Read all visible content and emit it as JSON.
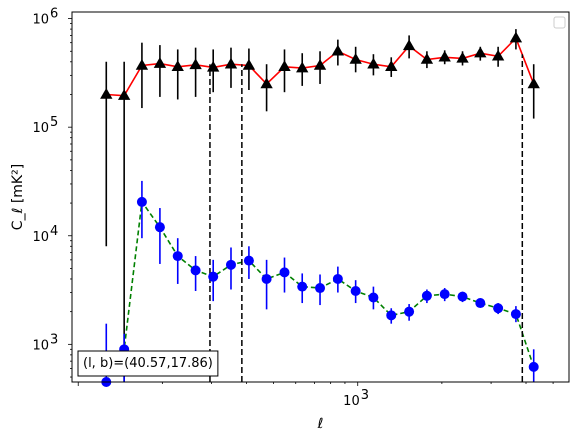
{
  "chart_data": {
    "type": "scatter",
    "xlabel": "ℓ",
    "ylabel": "C_ℓ  [mK²]",
    "xscale": "log",
    "yscale": "log",
    "xlim": [
      95,
      5700
    ],
    "ylim": [
      450,
      1150000
    ],
    "x_ticks": [
      {
        "value": 1000,
        "label": "10",
        "exp": "3"
      }
    ],
    "y_ticks": [
      {
        "value": 1000,
        "label": "10",
        "exp": "3"
      },
      {
        "value": 10000,
        "label": "10",
        "exp": "4"
      },
      {
        "value": 100000,
        "label": "10",
        "exp": "5"
      },
      {
        "value": 1000000,
        "label": "10",
        "exp": "6"
      }
    ],
    "grid": false,
    "legend": {
      "placement": "top-right",
      "entries": []
    },
    "annotation": "(l, b)=(40.57,17.86)",
    "vlines": [
      {
        "x": 296,
        "ymax": 380000
      },
      {
        "x": 385,
        "ymax": 380000
      },
      {
        "x": 3880,
        "ymax": 470000
      }
    ],
    "series": [
      {
        "color": "#ff0000",
        "marker_color": "#000000",
        "line_style": "solid",
        "marker": "triangle",
        "err_color": "#000000",
        "points": [
          {
            "x": 126,
            "y": 200000,
            "lo": 8000,
            "hi": 400000
          },
          {
            "x": 146,
            "y": 195000,
            "lo": 450,
            "hi": 400000
          },
          {
            "x": 169,
            "y": 370000,
            "lo": 150000,
            "hi": 600000
          },
          {
            "x": 196,
            "y": 385000,
            "lo": 190000,
            "hi": 570000
          },
          {
            "x": 227,
            "y": 360000,
            "lo": 180000,
            "hi": 520000
          },
          {
            "x": 263,
            "y": 375000,
            "lo": 190000,
            "hi": 540000
          },
          {
            "x": 304,
            "y": 355000,
            "lo": 210000,
            "hi": 520000
          },
          {
            "x": 352,
            "y": 380000,
            "lo": 230000,
            "hi": 540000
          },
          {
            "x": 408,
            "y": 370000,
            "lo": 220000,
            "hi": 530000
          },
          {
            "x": 472,
            "y": 250000,
            "lo": 140000,
            "hi": 380000
          },
          {
            "x": 547,
            "y": 360000,
            "lo": 210000,
            "hi": 520000
          },
          {
            "x": 633,
            "y": 350000,
            "lo": 240000,
            "hi": 480000
          },
          {
            "x": 733,
            "y": 370000,
            "lo": 250000,
            "hi": 500000
          },
          {
            "x": 849,
            "y": 500000,
            "lo": 370000,
            "hi": 640000
          },
          {
            "x": 983,
            "y": 420000,
            "lo": 320000,
            "hi": 550000
          },
          {
            "x": 1138,
            "y": 380000,
            "lo": 300000,
            "hi": 470000
          },
          {
            "x": 1318,
            "y": 360000,
            "lo": 290000,
            "hi": 440000
          },
          {
            "x": 1527,
            "y": 560000,
            "lo": 430000,
            "hi": 700000
          },
          {
            "x": 1768,
            "y": 420000,
            "lo": 350000,
            "hi": 500000
          },
          {
            "x": 2047,
            "y": 440000,
            "lo": 380000,
            "hi": 510000
          },
          {
            "x": 2371,
            "y": 430000,
            "lo": 370000,
            "hi": 500000
          },
          {
            "x": 2745,
            "y": 480000,
            "lo": 410000,
            "hi": 550000
          },
          {
            "x": 3179,
            "y": 450000,
            "lo": 360000,
            "hi": 550000
          },
          {
            "x": 3681,
            "y": 660000,
            "lo": 520000,
            "hi": 800000
          },
          {
            "x": 4262,
            "y": 250000,
            "lo": 120000,
            "hi": 380000
          }
        ]
      },
      {
        "color": "#008000",
        "marker_color": "#0000ff",
        "line_style": "dashed",
        "marker": "circle",
        "err_color": "#0000ff",
        "points": [
          {
            "x": 126,
            "y": 450,
            "lo": 450,
            "hi": 1550
          },
          {
            "x": 146,
            "y": 900,
            "lo": 450,
            "hi": 1250
          },
          {
            "x": 169,
            "y": 20500,
            "lo": 9500,
            "hi": 32000
          },
          {
            "x": 196,
            "y": 12000,
            "lo": 5500,
            "hi": 18000
          },
          {
            "x": 227,
            "y": 6500,
            "lo": 3600,
            "hi": 9500
          },
          {
            "x": 263,
            "y": 4800,
            "lo": 3100,
            "hi": 6500
          },
          {
            "x": 304,
            "y": 4200,
            "lo": 2500,
            "hi": 6000
          },
          {
            "x": 352,
            "y": 5400,
            "lo": 3200,
            "hi": 7800
          },
          {
            "x": 408,
            "y": 5900,
            "lo": 4000,
            "hi": 8000
          },
          {
            "x": 472,
            "y": 4000,
            "lo": 2100,
            "hi": 6000
          },
          {
            "x": 547,
            "y": 4600,
            "lo": 3000,
            "hi": 6300
          },
          {
            "x": 633,
            "y": 3400,
            "lo": 2400,
            "hi": 4500
          },
          {
            "x": 733,
            "y": 3300,
            "lo": 2300,
            "hi": 4400
          },
          {
            "x": 849,
            "y": 4000,
            "lo": 3000,
            "hi": 5200
          },
          {
            "x": 983,
            "y": 3100,
            "lo": 2400,
            "hi": 3900
          },
          {
            "x": 1138,
            "y": 2700,
            "lo": 2100,
            "hi": 3400
          },
          {
            "x": 1318,
            "y": 1850,
            "lo": 1550,
            "hi": 2150
          },
          {
            "x": 1527,
            "y": 2000,
            "lo": 1650,
            "hi": 2350
          },
          {
            "x": 1768,
            "y": 2800,
            "lo": 2400,
            "hi": 3200
          },
          {
            "x": 2047,
            "y": 2900,
            "lo": 2500,
            "hi": 3300
          },
          {
            "x": 2371,
            "y": 2750,
            "lo": 2450,
            "hi": 3050
          },
          {
            "x": 2745,
            "y": 2400,
            "lo": 2200,
            "hi": 2650
          },
          {
            "x": 3179,
            "y": 2150,
            "lo": 1900,
            "hi": 2400
          },
          {
            "x": 3681,
            "y": 1900,
            "lo": 1600,
            "hi": 2250
          },
          {
            "x": 4262,
            "y": 620,
            "lo": 450,
            "hi": 900
          }
        ]
      }
    ]
  }
}
